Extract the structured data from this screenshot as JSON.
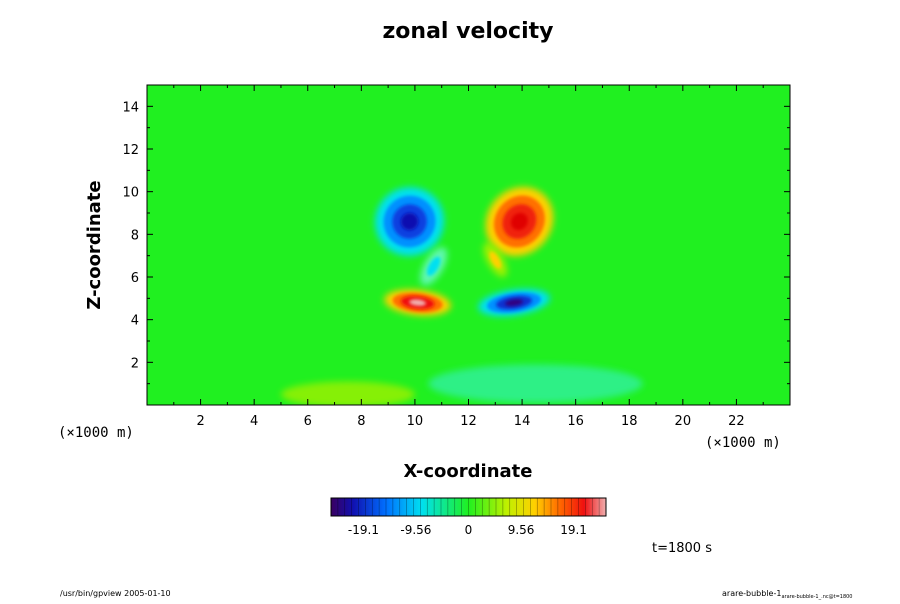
{
  "chart_data": {
    "type": "heatmap",
    "title": "zonal velocity",
    "xlabel": "X-coordinate",
    "ylabel": "Z-coordinate",
    "x_unit": "(×1000 m)",
    "y_unit": "(×1000 m)",
    "xlim": [
      0,
      24
    ],
    "ylim": [
      0,
      15
    ],
    "x_ticks": [
      "2",
      "4",
      "6",
      "8",
      "10",
      "12",
      "14",
      "16",
      "18",
      "20",
      "22"
    ],
    "y_ticks": [
      "2",
      "4",
      "6",
      "8",
      "10",
      "12",
      "14"
    ],
    "colorbar": {
      "range": [
        -25,
        25
      ],
      "tick_labels": [
        "-19.1",
        "-9.56",
        "0",
        "9.56",
        "19.1"
      ],
      "tick_values": [
        -19.1,
        -9.56,
        0,
        9.56,
        19.1
      ]
    },
    "features": [
      {
        "x": 9.8,
        "z": 8.6,
        "value": -22
      },
      {
        "x": 13.9,
        "z": 8.6,
        "value": 20
      },
      {
        "x": 10.1,
        "z": 4.8,
        "value": 25
      },
      {
        "x": 13.7,
        "z": 4.8,
        "value": -24
      },
      {
        "x": 10.7,
        "z": 6.5,
        "value": -7
      },
      {
        "x": 13.0,
        "z": 6.8,
        "value": 8
      }
    ],
    "time_label": "t=1800 s",
    "footer_left": "/usr/bin/gpview 2005-01-10",
    "footer_right_main": "arare-bubble-1",
    "footer_right_sub": "arare-bubble-1_.nc@t=1800"
  }
}
